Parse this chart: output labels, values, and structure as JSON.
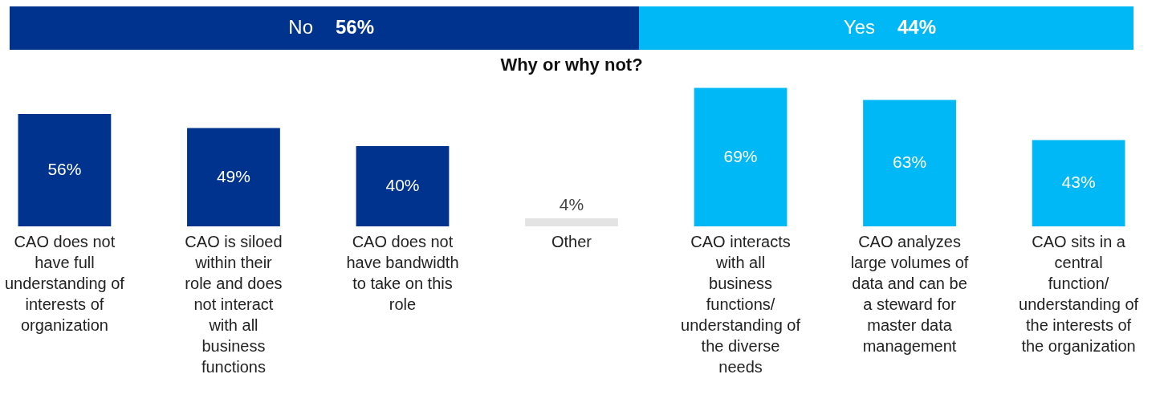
{
  "chart_data": [
    {
      "type": "bar",
      "orientation": "horizontal",
      "stacked": true,
      "categories": [
        null
      ],
      "series": [
        {
          "name": "No",
          "color": "#00338d",
          "values": [
            56
          ],
          "value_labels": [
            "56%"
          ]
        },
        {
          "name": "Yes",
          "color": "#00b8f5",
          "values": [
            44
          ],
          "value_labels": [
            "44%"
          ]
        }
      ]
    },
    {
      "type": "bar",
      "title": "Why or why not?",
      "categories": [
        "CAO does not have full understanding of interests of organization",
        "CAO is siloed within their role and does not interact with all business functions",
        "CAO does not have bandwidth to take on this role",
        "Other",
        "CAO interacts with all business functions/ understanding of the diverse needs",
        "CAO analyzes large volumes of data and can be a steward for master data management",
        "CAO sits in a central function/ understanding of the interests of the organization"
      ],
      "values": [
        56,
        49,
        40,
        4,
        69,
        63,
        43
      ],
      "value_labels": [
        "56%",
        "49%",
        "40%",
        "4%",
        "69%",
        "63%",
        "43%"
      ],
      "colors": [
        "#00338d",
        "#00338d",
        "#00338d",
        "#e3e3e3",
        "#00b8f5",
        "#00b8f5",
        "#00b8f5"
      ]
    }
  ]
}
